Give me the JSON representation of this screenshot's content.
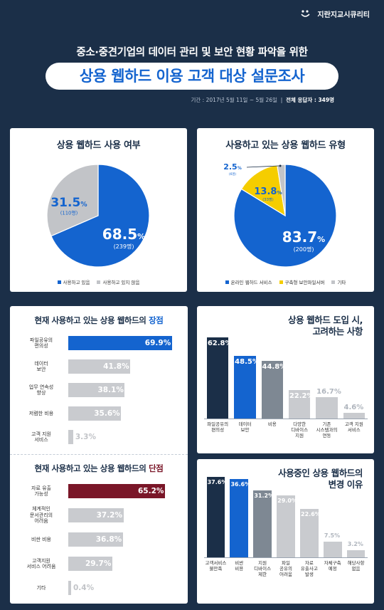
{
  "header": {
    "logo_text": "지란지교시큐리티",
    "subtitle": "중소·중견기업의 데이터 관리 및 보안 현황 파악을 위한",
    "title": "상용 웹하드 이용 고객 대상 설문조사",
    "period": "기간 : 2017년 5월 11일 ~ 5월 26일",
    "separator": "|",
    "respondents": "전체 응답자 : 349명"
  },
  "colors": {
    "navy": "#1b2f48",
    "blue": "#1464cf",
    "gray": "#c2c4c8",
    "yellow": "#f5cd00",
    "dark_red": "#7a1628",
    "dark_navy": "#1b2f48",
    "mid_gray": "#7e8893",
    "light_gray": "#c9cbcf"
  },
  "chart_data": [
    {
      "type": "pie",
      "title": "상용 웹하드 사용 여부",
      "slices": [
        {
          "label": "사용하고 있음",
          "value": 68.5,
          "count": "(239명)",
          "color": "#1464cf"
        },
        {
          "label": "사용하고 있지 않음",
          "value": 31.5,
          "count": "(110명)",
          "color": "#c2c4c8"
        }
      ],
      "legend": "bottom"
    },
    {
      "type": "pie",
      "title": "사용하고 있는 상용 웹하드 유형",
      "slices": [
        {
          "label": "온라인 웹하드 서비스",
          "value": 83.7,
          "count": "(200명)",
          "color": "#1464cf"
        },
        {
          "label": "구축형 보안파일서버",
          "value": 13.8,
          "count": "(33명)",
          "color": "#f5cd00"
        },
        {
          "label": "기타",
          "value": 2.5,
          "count": "(6명)",
          "color": "#c2c4c8"
        }
      ],
      "legend": "bottom"
    },
    {
      "type": "bar",
      "orientation": "horizontal",
      "title_prefix": "현재 사용하고 있는 상용 웹하드의 ",
      "title_accent": "장점",
      "categories": [
        "파일공유의\n편의성",
        "데이터\n보안",
        "업무 연속성\n향상",
        "저렴한 비용",
        "고객 지원\n서비스"
      ],
      "values": [
        69.9,
        41.8,
        38.1,
        35.6,
        3.3
      ],
      "value_labels": [
        "69.9%",
        "41.8%",
        "38.1%",
        "35.6%",
        "3.3%"
      ],
      "xlim": [
        0,
        70
      ]
    },
    {
      "type": "bar",
      "orientation": "horizontal",
      "title_prefix": "현재 사용하고 있는 상용 웹하드의 ",
      "title_accent": "단점",
      "categories": [
        "자료 유출\n가능성",
        "체계적인\n문서관리의\n어려움",
        "비싼 비용",
        "고객지원\n서비스 어려움",
        "기타"
      ],
      "values": [
        65.2,
        37.2,
        36.8,
        29.7,
        0.4
      ],
      "value_labels": [
        "65.2%",
        "37.2%",
        "36.8%",
        "29.7%",
        "0.4%"
      ],
      "xlim": [
        0,
        70
      ]
    },
    {
      "type": "bar",
      "orientation": "vertical",
      "title": "상용 웹하드 도입 시,\n고려하는 사항",
      "categories": [
        "파일공유의\n편의성",
        "데이터\n보안",
        "비용",
        "다양한\n디바이스\n지원",
        "기존\n시스템과의\n연동",
        "고객 지원\n서비스"
      ],
      "values": [
        62.8,
        48.5,
        44.8,
        22.2,
        16.7,
        4.6
      ],
      "value_labels": [
        "62.8%",
        "48.5%",
        "44.8%",
        "22.2%",
        "16.7%",
        "4.6%"
      ],
      "ylim": [
        0,
        65
      ]
    },
    {
      "type": "bar",
      "orientation": "vertical",
      "title": "사용중인 상용 웹하드의\n변경 이유",
      "categories": [
        "고객서비스\n불만족",
        "비싼\n비용",
        "지원\n디바이스\n제한",
        "파일\n공유의\n어려움",
        "자료\n유출사고\n발생",
        "자체구축\n예정",
        "해당사항\n없음"
      ],
      "values": [
        37.6,
        36.6,
        31.2,
        29.0,
        22.6,
        7.5,
        3.2
      ],
      "value_labels": [
        "37.6%",
        "36.6%",
        "31.2%",
        "29.0%",
        "22.6%",
        "7.5%",
        "3.2%"
      ],
      "ylim": [
        0,
        40
      ]
    }
  ]
}
